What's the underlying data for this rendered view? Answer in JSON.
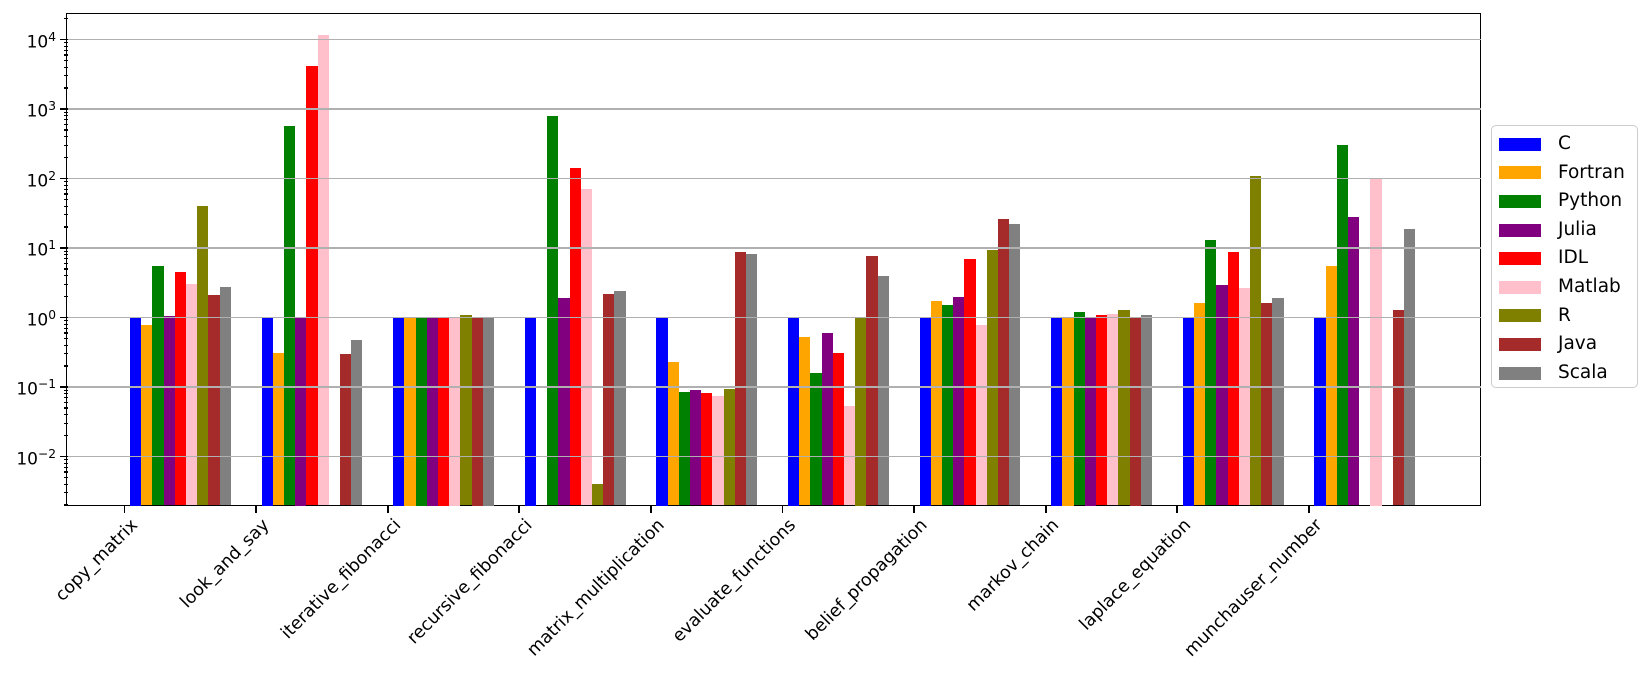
{
  "chart_data": {
    "type": "bar",
    "title": "",
    "xlabel": "",
    "ylabel": "",
    "yscale": "log",
    "ylim": [
      0.002,
      22500
    ],
    "y_tick_exponents": [
      4,
      3,
      2,
      1,
      0,
      -1,
      -2
    ],
    "grid": "horizontal-major-decades",
    "grid_color": "#b0b0b0",
    "legend_position": "center-right-outside",
    "categories": [
      "copy_matrix",
      "look_and_say",
      "iterative_fibonacci",
      "recursive_fibonacci",
      "matrix_multiplication",
      "evaluate_functions",
      "belief_propagation",
      "markov_chain",
      "laplace_equation",
      "munchauser_number"
    ],
    "series": [
      {
        "name": "C",
        "color": "#0000ff",
        "values": [
          1.0,
          1.0,
          1.0,
          1.0,
          1.0,
          1.0,
          1.0,
          1.0,
          1.0,
          1.0
        ]
      },
      {
        "name": "Fortran",
        "color": "#ffa500",
        "values": [
          0.78,
          0.31,
          1.0,
          null,
          0.23,
          0.53,
          1.7,
          1.0,
          1.6,
          5.5
        ]
      },
      {
        "name": "Python",
        "color": "#008000",
        "values": [
          5.6,
          570,
          1.0,
          790,
          0.086,
          0.16,
          1.5,
          1.2,
          13,
          300
        ]
      },
      {
        "name": "Julia",
        "color": "#800080",
        "values": [
          1.05,
          1.0,
          1.0,
          1.9,
          0.09,
          0.6,
          2.0,
          1.0,
          2.9,
          28
        ]
      },
      {
        "name": "IDL",
        "color": "#ff0000",
        "values": [
          4.5,
          4200,
          1.0,
          140,
          0.082,
          0.31,
          7.0,
          1.07,
          8.9,
          null
        ]
      },
      {
        "name": "Matlab",
        "color": "#ffc0cb",
        "values": [
          3.0,
          11600,
          1.0,
          70,
          0.073,
          0.054,
          0.79,
          1.13,
          2.7,
          100
        ]
      },
      {
        "name": "R",
        "color": "#808000",
        "values": [
          40,
          null,
          1.1,
          0.004,
          0.093,
          1.0,
          9.4,
          1.3,
          110,
          null
        ]
      },
      {
        "name": "Java",
        "color": "#a52a2a",
        "values": [
          2.1,
          0.3,
          1.0,
          2.2,
          8.9,
          7.7,
          26,
          1.0,
          1.6,
          1.3
        ]
      },
      {
        "name": "Scala",
        "color": "#808080",
        "values": [
          2.75,
          0.48,
          1.0,
          2.4,
          8.3,
          3.9,
          22,
          1.1,
          1.9,
          19
        ]
      }
    ]
  }
}
